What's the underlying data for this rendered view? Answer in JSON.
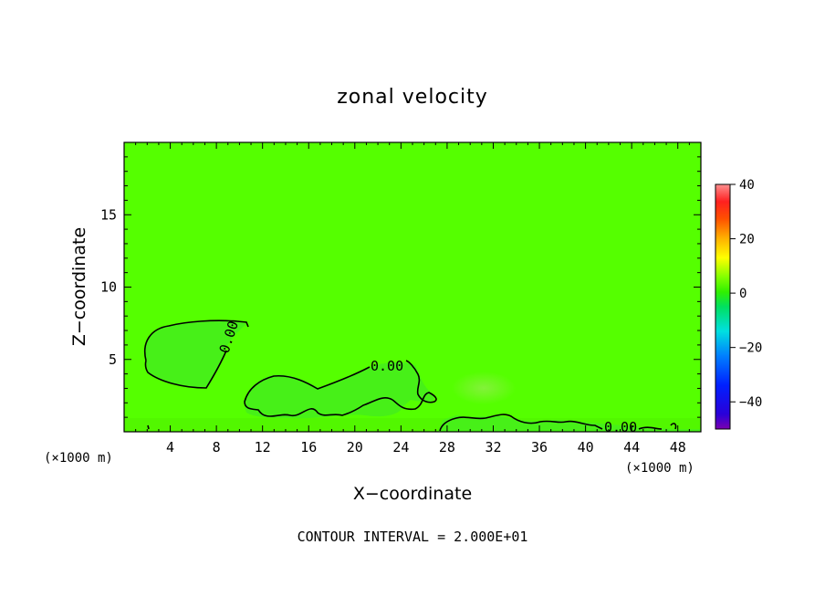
{
  "chart_data": {
    "type": "heatmap",
    "title": "zonal velocity",
    "xlabel": "X−coordinate",
    "ylabel": "Z−coordinate",
    "x_unit_left": "(×1000 m)",
    "x_unit_right": "(×1000 m)",
    "xlim": [
      0,
      50
    ],
    "ylim": [
      0,
      20
    ],
    "x_ticks": [
      4,
      8,
      12,
      16,
      20,
      24,
      28,
      32,
      36,
      40,
      44,
      48
    ],
    "y_ticks": [
      5,
      10,
      15
    ],
    "background_value": 0,
    "contour_label": "0.00",
    "contour_interval_text": "CONTOUR INTERVAL = 2.000E+01",
    "colorbar": {
      "min": -50,
      "max": 40,
      "ticks": [
        -40,
        -20,
        0,
        20,
        40
      ],
      "tick_labels": [
        "−40",
        "−20",
        "0",
        "20",
        "40"
      ]
    },
    "contour_regions": [
      {
        "name": "left-lobe",
        "x_range": [
          1.8,
          10.5
        ],
        "z_range": [
          3.1,
          7.8
        ],
        "value": "negative"
      },
      {
        "name": "middle-lobe",
        "x_range": [
          10.5,
          27.5
        ],
        "z_range": [
          0.8,
          4.6
        ],
        "value": "negative"
      },
      {
        "name": "near-surface-band",
        "x_range": [
          27.0,
          50.0
        ],
        "z_range": [
          0.0,
          1.3
        ],
        "value": "negative"
      }
    ]
  },
  "colors": {
    "field_background": "#55ff00",
    "negative_region": "#44f31a",
    "contour_line": "#000000"
  }
}
